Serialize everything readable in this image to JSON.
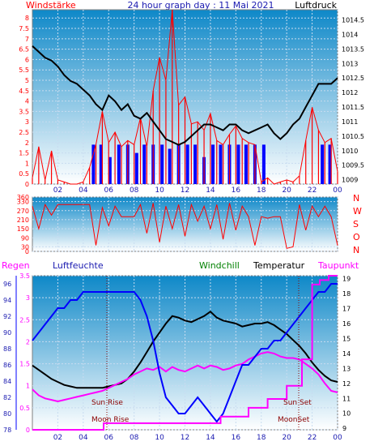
{
  "header": {
    "left_label": "Windstärke",
    "title": "24 hour graph day : 11 Mai 2021",
    "right_label": "Luftdruck"
  },
  "colors": {
    "wind_speed": "#ff0000",
    "wind_gust_fill": "#0000ff",
    "pressure": "#000000",
    "wind_dir": "#ff0000",
    "rain": "#ff00ff",
    "humidity": "#0000ff",
    "windchill": "#008000",
    "temperature": "#000000",
    "dewpoint": "#ff00ff",
    "sky_top": "#0e88c8",
    "sky_bottom": "#ffffff"
  },
  "x_ticks": [
    "02",
    "04",
    "06",
    "08",
    "10",
    "12",
    "14",
    "16",
    "18",
    "20",
    "22",
    "00"
  ],
  "chart_data": [
    {
      "type": "line",
      "id": "wind_pressure",
      "y_left_ticks": [
        "0",
        "0.5",
        "1",
        "1.5",
        "2",
        "2.5",
        "3",
        "3.5",
        "4",
        "4.5",
        "5",
        "5.5",
        "6",
        "6.5",
        "7",
        "7.5",
        "8"
      ],
      "y_left_range": [
        0,
        8.4
      ],
      "y_right_ticks": [
        "1009",
        "1009.5",
        "1010",
        "1010.5",
        "1011",
        "1011.5",
        "1012",
        "1012.5",
        "1013",
        "1013.5",
        "1014",
        "1014.5"
      ],
      "y_right_range": [
        1008.85,
        1014.85
      ],
      "series": [
        {
          "name": "Windstärke",
          "axis": "left",
          "x": [
            0.0,
            0.5,
            1.0,
            1.5,
            2.0,
            2.5,
            3.0,
            3.5,
            4.0,
            4.5,
            5.0,
            5.5,
            6.0,
            6.5,
            7.0,
            7.5,
            8.0,
            8.5,
            9.0,
            9.5,
            10.0,
            10.5,
            11.0,
            11.5,
            12.0,
            12.5,
            13.0,
            13.5,
            14.0,
            14.5,
            15.0,
            15.5,
            16.0,
            16.5,
            17.0,
            17.5,
            18.0,
            18.5,
            19.0,
            19.5,
            20.0,
            20.5,
            21.0,
            21.5,
            22.0,
            22.5,
            23.0,
            23.5,
            24.0
          ],
          "values": [
            0.3,
            1.8,
            0.2,
            1.6,
            0.2,
            0.1,
            0.0,
            0.0,
            0.1,
            0.8,
            1.9,
            3.5,
            2.0,
            2.5,
            1.8,
            2.1,
            1.9,
            3.2,
            1.8,
            4.5,
            6.1,
            5.0,
            8.4,
            3.8,
            4.2,
            2.9,
            3.0,
            2.6,
            3.4,
            2.1,
            1.9,
            2.4,
            2.8,
            2.2,
            2.0,
            1.9,
            0.1,
            0.3,
            0.0,
            0.1,
            0.2,
            0.1,
            0.4,
            2.1,
            3.7,
            2.6,
            2.0,
            2.2,
            0.6
          ]
        },
        {
          "name": "gust",
          "axis": "left",
          "x": [
            4.8,
            5.4,
            6.1,
            6.8,
            7.5,
            8.2,
            8.8,
            9.5,
            10.2,
            10.8,
            11.5,
            12.2,
            12.8,
            13.5,
            14.2,
            14.8,
            15.5,
            16.2,
            16.8,
            17.5,
            18.2,
            22.8,
            23.4
          ],
          "values": [
            1.9,
            1.9,
            1.3,
            1.9,
            1.9,
            1.5,
            1.9,
            1.9,
            1.9,
            1.7,
            1.9,
            1.9,
            1.9,
            1.3,
            1.9,
            1.9,
            1.9,
            1.9,
            1.9,
            1.9,
            1.9,
            1.9,
            1.9
          ]
        },
        {
          "name": "Luftdruck",
          "axis": "right",
          "x": [
            0.0,
            0.5,
            1.0,
            1.5,
            2.0,
            2.5,
            3.0,
            3.5,
            4.0,
            4.5,
            5.0,
            5.5,
            6.0,
            6.5,
            7.0,
            7.5,
            8.0,
            8.5,
            9.0,
            9.5,
            10.0,
            10.5,
            11.0,
            11.5,
            12.0,
            12.5,
            13.0,
            13.5,
            14.0,
            14.5,
            15.0,
            15.5,
            16.0,
            16.5,
            17.0,
            17.5,
            18.0,
            18.5,
            19.0,
            19.5,
            20.0,
            20.5,
            21.0,
            21.5,
            22.0,
            22.5,
            23.0,
            23.5,
            24.0
          ],
          "values": [
            1013.6,
            1013.4,
            1013.2,
            1013.1,
            1012.9,
            1012.6,
            1012.4,
            1012.3,
            1012.1,
            1011.9,
            1011.6,
            1011.4,
            1011.9,
            1011.7,
            1011.4,
            1011.6,
            1011.2,
            1011.1,
            1011.3,
            1011.0,
            1010.7,
            1010.4,
            1010.3,
            1010.2,
            1010.3,
            1010.5,
            1010.7,
            1010.9,
            1010.9,
            1010.8,
            1010.7,
            1010.9,
            1010.9,
            1010.7,
            1010.6,
            1010.7,
            1010.8,
            1010.9,
            1010.6,
            1010.4,
            1010.6,
            1010.9,
            1011.1,
            1011.5,
            1011.9,
            1012.3,
            1012.3,
            1012.3,
            1012.5
          ]
        }
      ]
    },
    {
      "type": "line",
      "id": "wind_direction",
      "y_left_ticks": [
        "0",
        "30",
        "90",
        "150",
        "210",
        "270",
        "330",
        "360"
      ],
      "y_left_range": [
        0,
        360
      ],
      "y_right_labels": [
        "N",
        "W",
        "S",
        "O",
        "N"
      ],
      "series": [
        {
          "name": "Windrichtung",
          "x": [
            0.0,
            0.5,
            1.0,
            1.5,
            2.0,
            2.5,
            3.0,
            3.5,
            4.0,
            4.5,
            5.0,
            5.5,
            6.0,
            6.5,
            7.0,
            7.5,
            8.0,
            8.5,
            9.0,
            9.5,
            10.0,
            10.5,
            11.0,
            11.5,
            12.0,
            12.5,
            13.0,
            13.5,
            14.0,
            14.5,
            15.0,
            15.5,
            16.0,
            16.5,
            17.0,
            17.5,
            18.0,
            18.5,
            19.0,
            19.5,
            20.0,
            20.5,
            21.0,
            21.5,
            22.0,
            22.5,
            23.0,
            23.5,
            24.0
          ],
          "values": [
            300,
            150,
            310,
            240,
            310,
            310,
            310,
            310,
            310,
            310,
            40,
            290,
            170,
            300,
            230,
            230,
            230,
            310,
            120,
            320,
            60,
            300,
            150,
            310,
            100,
            310,
            200,
            300,
            150,
            310,
            80,
            320,
            140,
            300,
            230,
            40,
            230,
            220,
            230,
            230,
            20,
            30,
            310,
            140,
            300,
            230,
            300,
            230,
            40
          ]
        }
      ]
    },
    {
      "type": "line",
      "id": "weather",
      "legend": [
        "Regen",
        "Luftfeuchte",
        "Windchill",
        "Temperatur",
        "Taupunkt"
      ],
      "y_rain_ticks": [
        "0",
        "0.5",
        "1",
        "1.5",
        "2",
        "2.5",
        "3",
        "3.5"
      ],
      "y_rain_range": [
        0,
        3.5
      ],
      "y_hum_ticks": [
        "78",
        "80",
        "82",
        "84",
        "86",
        "88",
        "90",
        "92",
        "94",
        "96"
      ],
      "y_hum_range": [
        78,
        97
      ],
      "y_temp_ticks": [
        "9",
        "10",
        "11",
        "12",
        "13",
        "14",
        "15",
        "16",
        "17",
        "18",
        "19"
      ],
      "y_temp_range": [
        8.9,
        19.2
      ],
      "annotations": {
        "sun_rise": "Sun Rise",
        "sun_set": "Sun Set",
        "moon_rise": "Moon Rise",
        "moon_set": "MoonSet"
      },
      "series": [
        {
          "name": "Regen",
          "axis": "rain",
          "x": [
            0.0,
            5.6,
            5.6,
            14.8,
            14.8,
            17.0,
            17.0,
            18.5,
            18.5,
            20.0,
            20.0,
            21.2,
            21.2,
            22.0,
            22.0,
            22.6,
            22.6,
            23.3,
            23.3,
            24.0
          ],
          "values": [
            0.0,
            0.0,
            0.15,
            0.15,
            0.3,
            0.3,
            0.5,
            0.5,
            0.7,
            0.7,
            1.0,
            1.0,
            1.6,
            1.6,
            3.3,
            3.3,
            3.4,
            3.4,
            3.5,
            3.5
          ]
        },
        {
          "name": "Luftfeuchte",
          "axis": "hum",
          "x": [
            0.0,
            0.5,
            1.0,
            1.5,
            2.0,
            2.5,
            3.0,
            3.5,
            4.0,
            4.5,
            5.0,
            5.5,
            6.0,
            6.5,
            7.0,
            7.5,
            8.0,
            8.5,
            9.0,
            9.5,
            10.0,
            10.5,
            11.0,
            11.5,
            12.0,
            12.5,
            13.0,
            13.5,
            14.0,
            14.5,
            15.0,
            15.5,
            16.0,
            16.5,
            17.0,
            17.5,
            18.0,
            18.5,
            19.0,
            19.5,
            20.0,
            20.5,
            21.0,
            21.5,
            22.0,
            22.5,
            23.0,
            23.5,
            24.0
          ],
          "values": [
            89,
            90,
            91,
            92,
            93,
            93,
            94,
            94,
            95,
            95,
            95,
            95,
            95,
            95,
            95,
            95,
            95,
            94,
            92,
            89,
            85,
            82,
            81,
            80,
            80,
            81,
            82,
            81,
            80,
            79,
            80,
            82,
            84,
            86,
            86,
            87,
            88,
            88,
            89,
            89,
            90,
            91,
            92,
            93,
            94,
            95,
            95,
            96,
            96
          ]
        },
        {
          "name": "Temperatur",
          "axis": "temp",
          "x": [
            0.0,
            0.5,
            1.0,
            1.5,
            2.0,
            2.5,
            3.0,
            3.5,
            4.0,
            4.5,
            5.0,
            5.5,
            6.0,
            6.5,
            7.0,
            7.5,
            8.0,
            8.5,
            9.0,
            9.5,
            10.0,
            10.5,
            11.0,
            11.5,
            12.0,
            12.5,
            13.0,
            13.5,
            14.0,
            14.5,
            15.0,
            15.5,
            16.0,
            16.5,
            17.0,
            17.5,
            18.0,
            18.5,
            19.0,
            19.5,
            20.0,
            20.5,
            21.0,
            21.5,
            22.0,
            22.5,
            23.0,
            23.5,
            24.0
          ],
          "values": [
            13.2,
            12.9,
            12.6,
            12.3,
            12.1,
            11.9,
            11.8,
            11.7,
            11.7,
            11.7,
            11.7,
            11.7,
            11.8,
            11.9,
            12.0,
            12.3,
            12.8,
            13.4,
            14.1,
            14.8,
            15.4,
            16.0,
            16.5,
            16.4,
            16.2,
            16.1,
            16.3,
            16.5,
            16.8,
            16.4,
            16.2,
            16.1,
            16.0,
            15.8,
            15.9,
            16.0,
            16.0,
            16.1,
            15.9,
            15.6,
            15.3,
            14.9,
            14.5,
            14.0,
            13.4,
            12.9,
            12.5,
            12.2,
            12.1
          ]
        },
        {
          "name": "Taupunkt",
          "axis": "temp",
          "x": [
            0.0,
            0.5,
            1.0,
            1.5,
            2.0,
            2.5,
            3.0,
            3.5,
            4.0,
            4.5,
            5.0,
            5.5,
            6.0,
            6.5,
            7.0,
            7.5,
            8.0,
            8.5,
            9.0,
            9.5,
            10.0,
            10.5,
            11.0,
            11.5,
            12.0,
            12.5,
            13.0,
            13.5,
            14.0,
            14.5,
            15.0,
            15.5,
            16.0,
            16.5,
            17.0,
            17.5,
            18.0,
            18.5,
            19.0,
            19.5,
            20.0,
            20.5,
            21.0,
            21.5,
            22.0,
            22.5,
            23.0,
            23.5,
            24.0
          ],
          "values": [
            11.6,
            11.2,
            11.0,
            10.9,
            10.8,
            10.9,
            11.0,
            11.1,
            11.2,
            11.3,
            11.4,
            11.5,
            11.7,
            11.9,
            12.1,
            12.3,
            12.6,
            12.8,
            13.0,
            12.9,
            13.1,
            12.8,
            13.1,
            12.9,
            12.8,
            13.0,
            13.2,
            13.0,
            13.2,
            13.1,
            12.9,
            13.0,
            13.2,
            13.3,
            13.6,
            13.8,
            14.0,
            14.1,
            14.0,
            13.8,
            13.7,
            13.7,
            13.6,
            13.3,
            13.0,
            12.6,
            12.0,
            11.5,
            11.4
          ]
        }
      ]
    }
  ]
}
